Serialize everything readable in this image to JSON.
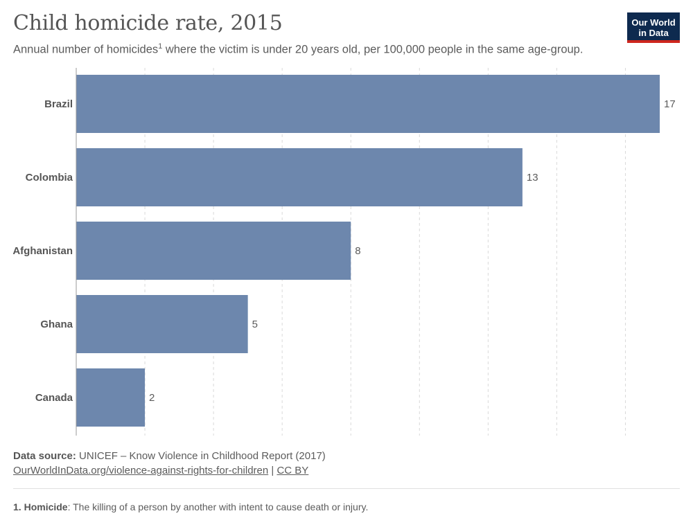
{
  "header": {
    "title": "Child homicide rate, 2015",
    "subtitle_before": "Annual number of homicides",
    "subtitle_sup": "1",
    "subtitle_after": " where the victim is under 20 years old, per 100,000 people in the same age-group."
  },
  "logo": {
    "line1": "Our World",
    "line2": "in Data",
    "bg_color": "#0e2a4f",
    "accent_color": "#ce261e"
  },
  "chart_data": {
    "type": "bar",
    "orientation": "horizontal",
    "title": "Child homicide rate, 2015",
    "categories": [
      "Brazil",
      "Colombia",
      "Afghanistan",
      "Ghana",
      "Canada"
    ],
    "values": [
      17,
      13,
      8,
      5,
      2
    ],
    "value_labels": [
      "17",
      "13",
      "8",
      "5",
      "2"
    ],
    "xlim": [
      0,
      17
    ],
    "gridlines": [
      0,
      2,
      4,
      6,
      8,
      10,
      12,
      14,
      16
    ],
    "grid": true,
    "bar_color": "#6d87ad"
  },
  "footer": {
    "source_label": "Data source:",
    "source_text": " UNICEF – Know Violence in Childhood Report (2017)",
    "url_text": "OurWorldInData.org/violence-against-rights-for-children",
    "separator": " | ",
    "license": "CC BY"
  },
  "note": {
    "number": "1.",
    "term": "Homicide",
    "definition": ": The killing of a person by another with intent to cause death or injury."
  }
}
